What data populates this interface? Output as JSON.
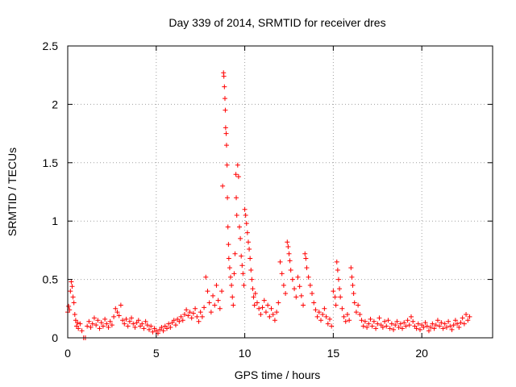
{
  "chart_data": {
    "type": "scatter",
    "title": "Day 339 of 2014, SRMTID for receiver dres",
    "xlabel": "GPS time / hours",
    "ylabel": "SRMTID / TECUs",
    "xlim": [
      0,
      24
    ],
    "ylim": [
      0,
      2.5
    ],
    "xticks": [
      0,
      5,
      10,
      15,
      20
    ],
    "xtick_labels": [
      "0",
      "5",
      "10",
      "15",
      "20"
    ],
    "yticks": [
      0,
      0.5,
      1,
      1.5,
      2,
      2.5
    ],
    "ytick_labels": [
      "0",
      "0.5",
      "1",
      "1.5",
      "2",
      "2.5"
    ],
    "grid": true,
    "marker": "+",
    "series": [
      {
        "name": "SRMTID",
        "color": "#ff0000",
        "points": [
          [
            0.0,
            0.22
          ],
          [
            0.05,
            0.27
          ],
          [
            0.1,
            0.24
          ],
          [
            0.15,
            0.4
          ],
          [
            0.2,
            0.48
          ],
          [
            0.25,
            0.44
          ],
          [
            0.3,
            0.35
          ],
          [
            0.35,
            0.3
          ],
          [
            0.4,
            0.2
          ],
          [
            0.45,
            0.15
          ],
          [
            0.5,
            0.1
          ],
          [
            0.55,
            0.13
          ],
          [
            0.6,
            0.08
          ],
          [
            0.7,
            0.12
          ],
          [
            0.8,
            0.06
          ],
          [
            0.9,
            0.0
          ],
          [
            1.0,
            0.0
          ],
          [
            1.1,
            0.1
          ],
          [
            1.2,
            0.14
          ],
          [
            1.3,
            0.09
          ],
          [
            1.4,
            0.12
          ],
          [
            1.5,
            0.17
          ],
          [
            1.6,
            0.11
          ],
          [
            1.7,
            0.15
          ],
          [
            1.8,
            0.08
          ],
          [
            1.9,
            0.13
          ],
          [
            2.0,
            0.1
          ],
          [
            2.1,
            0.16
          ],
          [
            2.2,
            0.12
          ],
          [
            2.3,
            0.09
          ],
          [
            2.4,
            0.14
          ],
          [
            2.5,
            0.11
          ],
          [
            2.6,
            0.18
          ],
          [
            2.7,
            0.25
          ],
          [
            2.8,
            0.22
          ],
          [
            2.9,
            0.19
          ],
          [
            3.0,
            0.28
          ],
          [
            3.1,
            0.15
          ],
          [
            3.2,
            0.12
          ],
          [
            3.3,
            0.16
          ],
          [
            3.4,
            0.1
          ],
          [
            3.5,
            0.14
          ],
          [
            3.6,
            0.17
          ],
          [
            3.7,
            0.12
          ],
          [
            3.8,
            0.09
          ],
          [
            3.9,
            0.13
          ],
          [
            4.0,
            0.15
          ],
          [
            4.1,
            0.1
          ],
          [
            4.2,
            0.12
          ],
          [
            4.3,
            0.08
          ],
          [
            4.4,
            0.14
          ],
          [
            4.5,
            0.11
          ],
          [
            4.6,
            0.07
          ],
          [
            4.7,
            0.1
          ],
          [
            4.8,
            0.05
          ],
          [
            4.9,
            0.08
          ],
          [
            5.0,
            0.06
          ],
          [
            5.1,
            0.04
          ],
          [
            5.2,
            0.07
          ],
          [
            5.3,
            0.09
          ],
          [
            5.4,
            0.06
          ],
          [
            5.5,
            0.1
          ],
          [
            5.6,
            0.08
          ],
          [
            5.7,
            0.12
          ],
          [
            5.8,
            0.09
          ],
          [
            5.9,
            0.13
          ],
          [
            6.0,
            0.15
          ],
          [
            6.1,
            0.11
          ],
          [
            6.2,
            0.16
          ],
          [
            6.3,
            0.14
          ],
          [
            6.4,
            0.18
          ],
          [
            6.5,
            0.15
          ],
          [
            6.6,
            0.2
          ],
          [
            6.7,
            0.24
          ],
          [
            6.8,
            0.19
          ],
          [
            6.9,
            0.22
          ],
          [
            7.0,
            0.17
          ],
          [
            7.1,
            0.21
          ],
          [
            7.2,
            0.25
          ],
          [
            7.3,
            0.18
          ],
          [
            7.4,
            0.14
          ],
          [
            7.5,
            0.22
          ],
          [
            7.6,
            0.18
          ],
          [
            7.7,
            0.26
          ],
          [
            7.8,
            0.52
          ],
          [
            7.9,
            0.4
          ],
          [
            8.0,
            0.3
          ],
          [
            8.1,
            0.22
          ],
          [
            8.2,
            0.36
          ],
          [
            8.3,
            0.28
          ],
          [
            8.4,
            0.45
          ],
          [
            8.5,
            0.32
          ],
          [
            8.6,
            0.25
          ],
          [
            8.7,
            0.4
          ],
          [
            8.75,
            1.3
          ],
          [
            8.8,
            2.27
          ],
          [
            8.82,
            2.24
          ],
          [
            8.85,
            2.15
          ],
          [
            8.88,
            2.05
          ],
          [
            8.9,
            1.95
          ],
          [
            8.92,
            1.8
          ],
          [
            8.95,
            1.75
          ],
          [
            8.97,
            1.65
          ],
          [
            9.0,
            1.48
          ],
          [
            9.02,
            1.2
          ],
          [
            9.05,
            0.95
          ],
          [
            9.08,
            0.8
          ],
          [
            9.1,
            0.68
          ],
          [
            9.15,
            0.6
          ],
          [
            9.2,
            0.52
          ],
          [
            9.25,
            0.45
          ],
          [
            9.3,
            0.35
          ],
          [
            9.35,
            0.28
          ],
          [
            9.4,
            0.55
          ],
          [
            9.45,
            0.72
          ],
          [
            9.5,
            1.4
          ],
          [
            9.52,
            1.2
          ],
          [
            9.55,
            1.05
          ],
          [
            9.6,
            1.48
          ],
          [
            9.65,
            1.38
          ],
          [
            9.7,
            0.95
          ],
          [
            9.75,
            0.85
          ],
          [
            9.8,
            0.7
          ],
          [
            9.85,
            0.62
          ],
          [
            9.9,
            0.55
          ],
          [
            9.95,
            0.45
          ],
          [
            10.0,
            1.1
          ],
          [
            10.05,
            1.05
          ],
          [
            10.1,
            0.98
          ],
          [
            10.15,
            0.9
          ],
          [
            10.2,
            0.82
          ],
          [
            10.25,
            0.76
          ],
          [
            10.3,
            0.68
          ],
          [
            10.35,
            0.58
          ],
          [
            10.4,
            0.5
          ],
          [
            10.45,
            0.42
          ],
          [
            10.5,
            0.35
          ],
          [
            10.55,
            0.28
          ],
          [
            10.6,
            0.38
          ],
          [
            10.7,
            0.3
          ],
          [
            10.8,
            0.25
          ],
          [
            10.9,
            0.2
          ],
          [
            11.0,
            0.26
          ],
          [
            11.1,
            0.32
          ],
          [
            11.2,
            0.22
          ],
          [
            11.3,
            0.28
          ],
          [
            11.4,
            0.18
          ],
          [
            11.5,
            0.25
          ],
          [
            11.6,
            0.2
          ],
          [
            11.7,
            0.15
          ],
          [
            11.8,
            0.22
          ],
          [
            11.9,
            0.3
          ],
          [
            12.0,
            0.65
          ],
          [
            12.1,
            0.55
          ],
          [
            12.2,
            0.45
          ],
          [
            12.3,
            0.38
          ],
          [
            12.4,
            0.82
          ],
          [
            12.45,
            0.78
          ],
          [
            12.5,
            0.72
          ],
          [
            12.55,
            0.66
          ],
          [
            12.6,
            0.58
          ],
          [
            12.7,
            0.5
          ],
          [
            12.8,
            0.42
          ],
          [
            12.9,
            0.35
          ],
          [
            13.0,
            0.52
          ],
          [
            13.1,
            0.44
          ],
          [
            13.2,
            0.36
          ],
          [
            13.3,
            0.28
          ],
          [
            13.4,
            0.72
          ],
          [
            13.45,
            0.68
          ],
          [
            13.5,
            0.6
          ],
          [
            13.6,
            0.52
          ],
          [
            13.7,
            0.45
          ],
          [
            13.8,
            0.38
          ],
          [
            13.9,
            0.3
          ],
          [
            14.0,
            0.24
          ],
          [
            14.1,
            0.18
          ],
          [
            14.2,
            0.22
          ],
          [
            14.3,
            0.15
          ],
          [
            14.4,
            0.2
          ],
          [
            14.5,
            0.25
          ],
          [
            14.6,
            0.18
          ],
          [
            14.7,
            0.12
          ],
          [
            14.8,
            0.16
          ],
          [
            14.9,
            0.1
          ],
          [
            15.0,
            0.4
          ],
          [
            15.1,
            0.35
          ],
          [
            15.15,
            0.28
          ],
          [
            15.2,
            0.65
          ],
          [
            15.25,
            0.58
          ],
          [
            15.3,
            0.5
          ],
          [
            15.35,
            0.42
          ],
          [
            15.4,
            0.35
          ],
          [
            15.5,
            0.25
          ],
          [
            15.6,
            0.18
          ],
          [
            15.7,
            0.14
          ],
          [
            15.8,
            0.2
          ],
          [
            15.9,
            0.15
          ],
          [
            16.0,
            0.6
          ],
          [
            16.05,
            0.52
          ],
          [
            16.1,
            0.45
          ],
          [
            16.15,
            0.38
          ],
          [
            16.2,
            0.3
          ],
          [
            16.3,
            0.22
          ],
          [
            16.4,
            0.28
          ],
          [
            16.5,
            0.2
          ],
          [
            16.6,
            0.15
          ],
          [
            16.7,
            0.1
          ],
          [
            16.8,
            0.14
          ],
          [
            16.9,
            0.09
          ],
          [
            17.0,
            0.12
          ],
          [
            17.1,
            0.16
          ],
          [
            17.2,
            0.1
          ],
          [
            17.3,
            0.14
          ],
          [
            17.4,
            0.08
          ],
          [
            17.5,
            0.12
          ],
          [
            17.6,
            0.17
          ],
          [
            17.7,
            0.11
          ],
          [
            17.8,
            0.09
          ],
          [
            17.9,
            0.14
          ],
          [
            18.0,
            0.1
          ],
          [
            18.1,
            0.15
          ],
          [
            18.2,
            0.08
          ],
          [
            18.3,
            0.12
          ],
          [
            18.4,
            0.07
          ],
          [
            18.5,
            0.11
          ],
          [
            18.6,
            0.14
          ],
          [
            18.7,
            0.09
          ],
          [
            18.8,
            0.12
          ],
          [
            18.9,
            0.08
          ],
          [
            19.0,
            0.13
          ],
          [
            19.1,
            0.1
          ],
          [
            19.2,
            0.15
          ],
          [
            19.3,
            0.11
          ],
          [
            19.4,
            0.18
          ],
          [
            19.5,
            0.14
          ],
          [
            19.6,
            0.1
          ],
          [
            19.7,
            0.08
          ],
          [
            19.8,
            0.12
          ],
          [
            19.9,
            0.07
          ],
          [
            20.0,
            0.11
          ],
          [
            20.1,
            0.09
          ],
          [
            20.2,
            0.13
          ],
          [
            20.3,
            0.1
          ],
          [
            20.4,
            0.06
          ],
          [
            20.5,
            0.09
          ],
          [
            20.6,
            0.12
          ],
          [
            20.7,
            0.08
          ],
          [
            20.8,
            0.11
          ],
          [
            20.9,
            0.15
          ],
          [
            21.0,
            0.1
          ],
          [
            21.1,
            0.13
          ],
          [
            21.2,
            0.08
          ],
          [
            21.3,
            0.12
          ],
          [
            21.4,
            0.09
          ],
          [
            21.5,
            0.14
          ],
          [
            21.6,
            0.1
          ],
          [
            21.7,
            0.07
          ],
          [
            21.8,
            0.11
          ],
          [
            21.9,
            0.15
          ],
          [
            22.0,
            0.12
          ],
          [
            22.1,
            0.09
          ],
          [
            22.2,
            0.13
          ],
          [
            22.3,
            0.17
          ],
          [
            22.4,
            0.12
          ],
          [
            22.5,
            0.2
          ],
          [
            22.6,
            0.15
          ],
          [
            22.7,
            0.18
          ]
        ]
      }
    ]
  }
}
